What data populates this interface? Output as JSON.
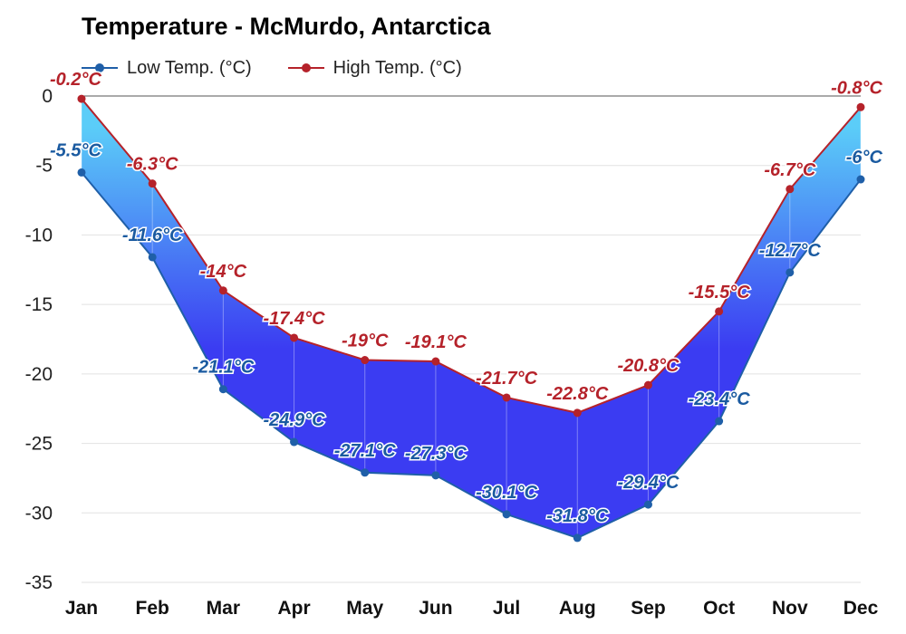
{
  "chart_data": {
    "type": "area",
    "title": "Temperature - McMurdo, Antarctica",
    "categories": [
      "Jan",
      "Feb",
      "Mar",
      "Apr",
      "May",
      "Jun",
      "Jul",
      "Aug",
      "Sep",
      "Oct",
      "Nov",
      "Dec"
    ],
    "series": [
      {
        "name": "Low Temp. (°C)",
        "color": "#1f5fa8",
        "label_color": "#1a5aa0",
        "values": [
          -5.5,
          -11.6,
          -21.1,
          -24.9,
          -27.1,
          -27.3,
          -30.1,
          -31.8,
          -29.4,
          -23.4,
          -12.7,
          -6
        ],
        "labels": [
          "-5.5°C",
          "-11.6°C",
          "-21.1°C",
          "-24.9°C",
          "-27.1°C",
          "-27.3°C",
          "-30.1°C",
          "-31.8°C",
          "-29.4°C",
          "-23.4°C",
          "-12.7°C",
          "-6°C"
        ]
      },
      {
        "name": "High Temp. (°C)",
        "color": "#b5222a",
        "label_color": "#b5222a",
        "values": [
          -0.2,
          -6.3,
          -14,
          -17.4,
          -19,
          -19.1,
          -21.7,
          -22.8,
          -20.8,
          -15.5,
          -6.7,
          -0.8
        ],
        "labels": [
          "-0.2°C",
          "-6.3°C",
          "-14°C",
          "-17.4°C",
          "-19°C",
          "-19.1°C",
          "-21.7°C",
          "-22.8°C",
          "-20.8°C",
          "-15.5°C",
          "-6.7°C",
          "-0.8°C"
        ]
      }
    ],
    "ylim": [
      -35,
      0
    ],
    "yticks": [
      "0",
      "-5",
      "-10",
      "-15",
      "-20",
      "-25",
      "-30",
      "-35"
    ],
    "ytick_values": [
      0,
      -5,
      -10,
      -15,
      -20,
      -25,
      -30,
      -35
    ],
    "grid": true,
    "legend_position": "top-left",
    "fill_colors": {
      "warm": "#5bcdf8",
      "cold": "#3b3cf2"
    }
  }
}
